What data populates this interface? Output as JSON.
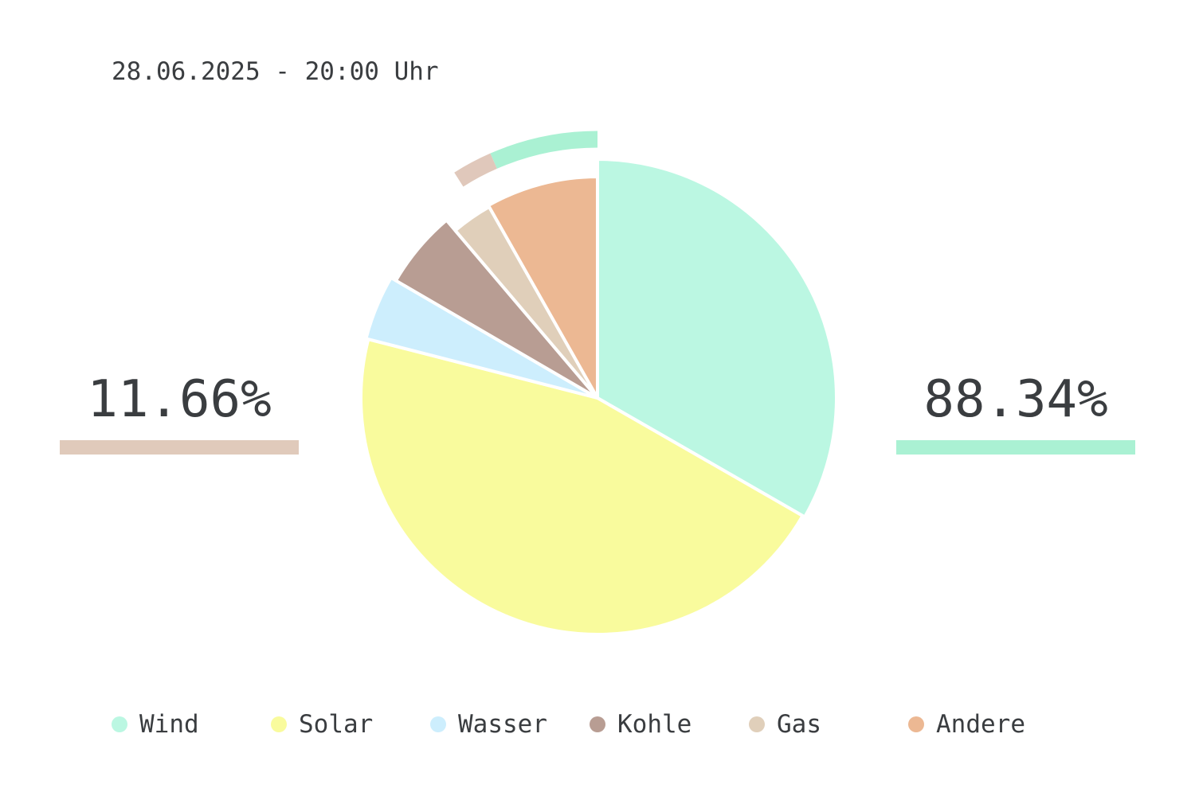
{
  "timestamp": "28.06.2025 - 20:00 Uhr",
  "summary": {
    "fossil_pct": "11.66%",
    "renewable_pct": "88.34%",
    "fossil_color": "#e0cabb",
    "renewable_color": "#aaf1d3"
  },
  "chart_data": {
    "type": "pie",
    "title": "",
    "start": "top",
    "direction": "clockwise",
    "slices": [
      {
        "name": "Wind",
        "value": 33.3,
        "color": "#bbf7e2"
      },
      {
        "name": "Solar",
        "value": 45.7,
        "color": "#f9fb9d"
      },
      {
        "name": "Wasser",
        "value": 4.4,
        "color": "#cdeefd"
      },
      {
        "name": "Kohle",
        "value": 5.4,
        "color": "#b89d93"
      },
      {
        "name": "Gas",
        "value": 3.0,
        "color": "#e0cfba"
      },
      {
        "name": "Andere",
        "value": 8.2,
        "color": "#ecb893"
      }
    ],
    "outer_ring": {
      "segments": [
        {
          "label": "renewable",
          "value": 88.34,
          "color": "#aaf1d3"
        },
        {
          "label": "fossil",
          "value": 11.66,
          "color": "#e0c8bb"
        }
      ],
      "shown_span_pct": 9.0
    },
    "legend": {
      "position": "bottom",
      "entries": [
        "Wind",
        "Solar",
        "Wasser",
        "Kohle",
        "Gas",
        "Andere"
      ]
    }
  }
}
